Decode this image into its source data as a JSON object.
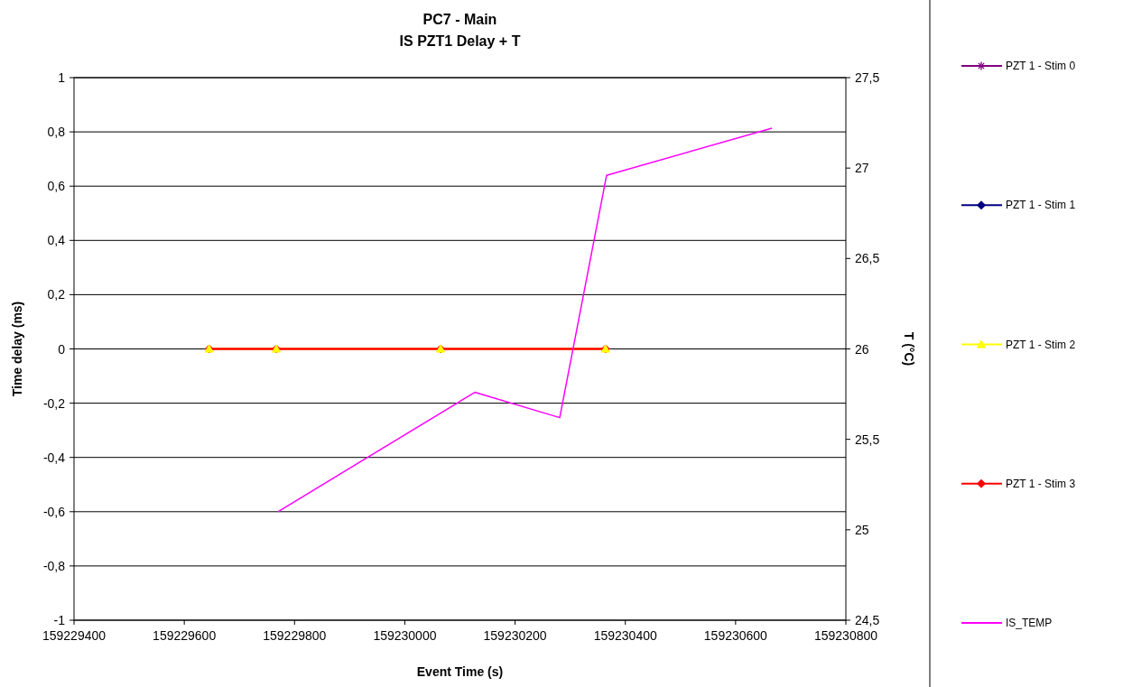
{
  "chart_data": {
    "type": "line",
    "title": "PC7 - Main",
    "subtitle": "IS PZT1 Delay + T",
    "xlabel": "Event Time (s)",
    "ylabel": "Time delay (ms)",
    "y2label": "T (°C)",
    "xlim": [
      159229400,
      159230800
    ],
    "xticks": [
      159229400,
      159229600,
      159229800,
      159230000,
      159230200,
      159230400,
      159230600,
      159230800
    ],
    "ylim": [
      -1,
      1
    ],
    "yticks": [
      {
        "value": -1,
        "label": "-1"
      },
      {
        "value": -0.8,
        "label": "-0,8"
      },
      {
        "value": -0.6,
        "label": "-0,6"
      },
      {
        "value": -0.4,
        "label": "-0,4"
      },
      {
        "value": -0.2,
        "label": "-0,2"
      },
      {
        "value": 0,
        "label": "0"
      },
      {
        "value": 0.2,
        "label": "0,2"
      },
      {
        "value": 0.4,
        "label": "0,4"
      },
      {
        "value": 0.6,
        "label": "0,6"
      },
      {
        "value": 0.8,
        "label": "0,8"
      },
      {
        "value": 1,
        "label": "1"
      }
    ],
    "y2lim": [
      24.5,
      27.5
    ],
    "y2ticks": [
      {
        "value": 24.5,
        "label": "24,5"
      },
      {
        "value": 25,
        "label": "25"
      },
      {
        "value": 25.5,
        "label": "25,5"
      },
      {
        "value": 26,
        "label": "26"
      },
      {
        "value": 26.5,
        "label": "26,5"
      },
      {
        "value": 27,
        "label": "27"
      },
      {
        "value": 27.5,
        "label": "27,5"
      }
    ],
    "grid": "y",
    "legend": "right",
    "series": [
      {
        "name": "PZT 1 - Stim 0",
        "color": "#800080",
        "marker": "star"
      },
      {
        "name": "PZT 1 - Stim 1",
        "color": "#000080",
        "marker": "diamond"
      },
      {
        "name": "PZT 1 - Stim 2",
        "color": "#ffff00",
        "marker": "triangle",
        "x": [
          159229645,
          159229767,
          159230065,
          159230364
        ],
        "values": [
          0,
          0,
          0,
          0
        ]
      },
      {
        "name": "PZT 1 - Stim 3",
        "color": "#ff0000",
        "marker": "diamond",
        "x": [
          159229645,
          159229767,
          159230065,
          159230364
        ],
        "values": [
          0,
          0,
          0,
          0
        ]
      },
      {
        "name": "IS_TEMP",
        "color": "#ff00ff",
        "marker": "none",
        "axis": "y2",
        "x": [
          159229770,
          159230127,
          159230281,
          159230366,
          159230666
        ],
        "values": [
          25.1,
          25.76,
          25.62,
          26.96,
          27.22
        ]
      }
    ]
  }
}
